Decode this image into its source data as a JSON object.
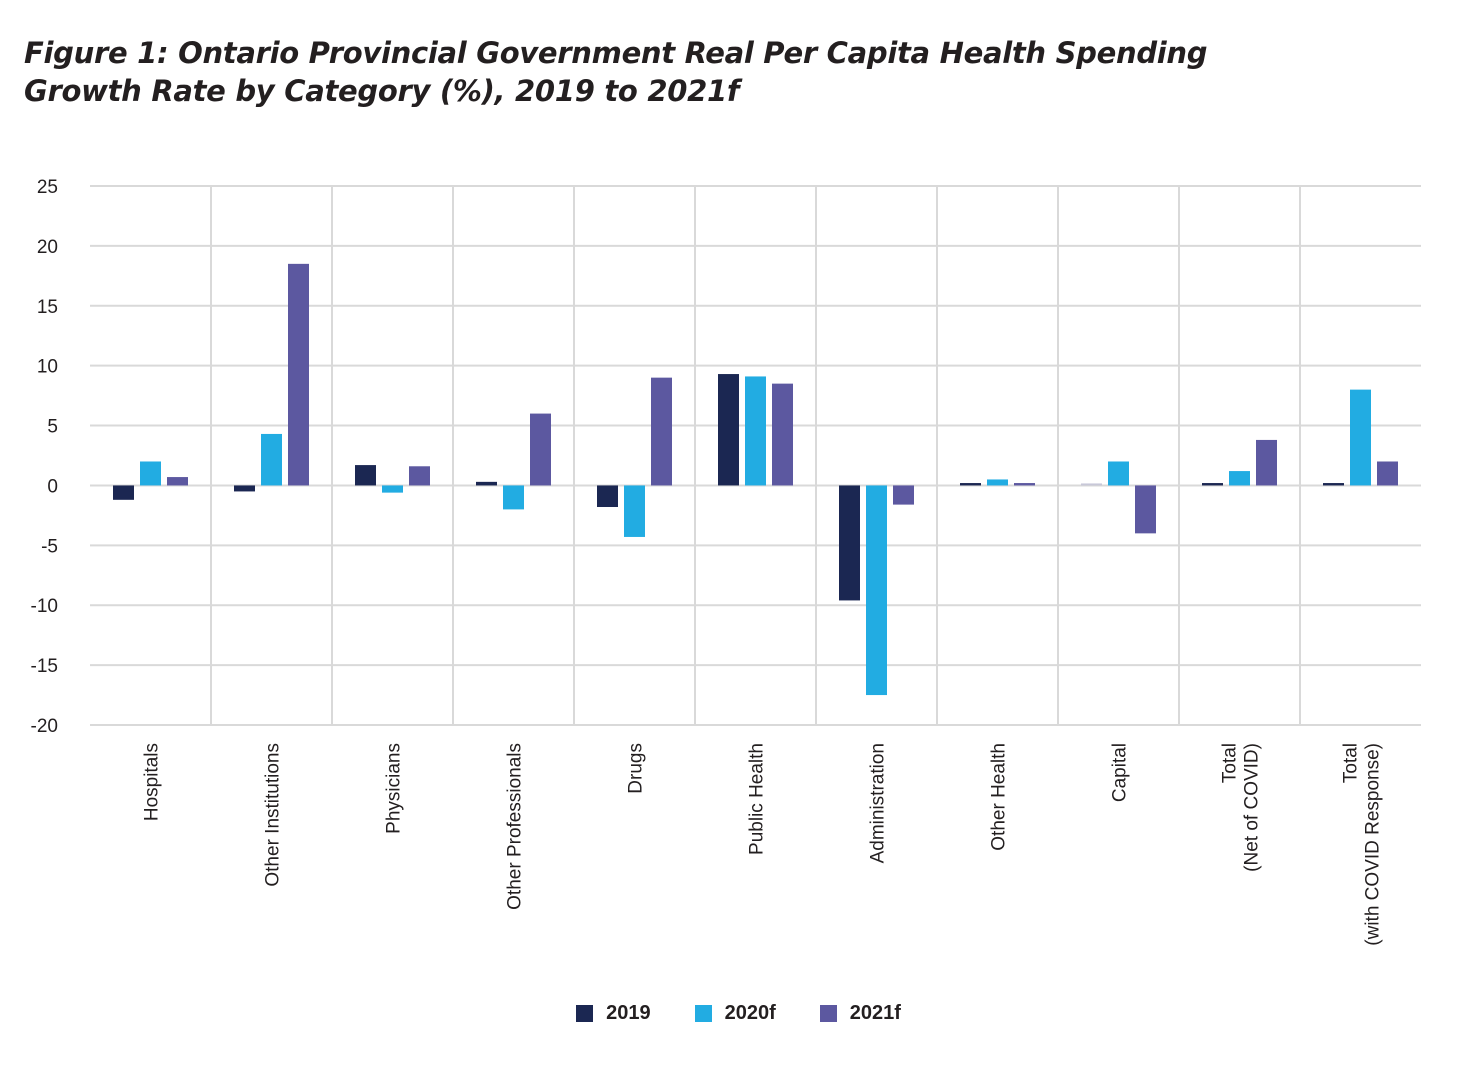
{
  "chart_data": {
    "type": "bar",
    "title": "Figure 1: Ontario Provincial Government Real Per Capita Health Spending Growth Rate by Category (%), 2019 to 2021f",
    "title_lines": [
      "Figure 1: Ontario Provincial Government Real Per Capita Health Spending",
      "Growth Rate by Category (%), 2019 to 2021f"
    ],
    "xlabel": "",
    "ylabel": "",
    "ylim": [
      -20,
      25
    ],
    "yticks": [
      25,
      20,
      15,
      10,
      5,
      0,
      -5,
      -10,
      -15,
      -20
    ],
    "ytick_labels": [
      "25",
      "20",
      "15",
      "10",
      "5",
      "0",
      "-5",
      "-10",
      "-15",
      "-20"
    ],
    "grid": true,
    "legend_position": "bottom-center",
    "categories": [
      "Hospitals",
      "Other Institutions",
      "Physicians",
      "Other Professionals",
      "Drugs",
      "Public Health",
      "Administration",
      "Other Health",
      "Capital",
      "Total (Net of COVID)",
      "Total (with COVID Response)"
    ],
    "category_label_lines": [
      [
        "Hospitals"
      ],
      [
        "Other Institutions"
      ],
      [
        "Physicians"
      ],
      [
        "Other Professionals"
      ],
      [
        "Drugs"
      ],
      [
        "Public Health"
      ],
      [
        "Administration"
      ],
      [
        "Other Health"
      ],
      [
        "Capital"
      ],
      [
        "Total",
        "(Net of COVID)"
      ],
      [
        "Total",
        "(with COVID Response)"
      ]
    ],
    "series": [
      {
        "name": "2019",
        "color": "#1b2752",
        "values": [
          -1.2,
          -0.5,
          1.7,
          0.3,
          -1.8,
          9.3,
          -9.6,
          0.2,
          0.1,
          0.2,
          0.2
        ]
      },
      {
        "name": "2020f",
        "color": "#22ace2",
        "values": [
          2.0,
          4.3,
          -0.6,
          -2.0,
          -4.3,
          9.1,
          -17.5,
          0.5,
          2.0,
          1.2,
          8.0
        ]
      },
      {
        "name": "2021f",
        "color": "#5c58a0",
        "values": [
          0.7,
          18.5,
          1.6,
          6.0,
          9.0,
          8.5,
          -1.6,
          0.2,
          -4.0,
          3.8,
          2.0
        ]
      }
    ]
  },
  "colors": {
    "gridline": "#d9d9d9",
    "text": "#231f20",
    "capital_2019_bar": "#c8c8d8"
  }
}
